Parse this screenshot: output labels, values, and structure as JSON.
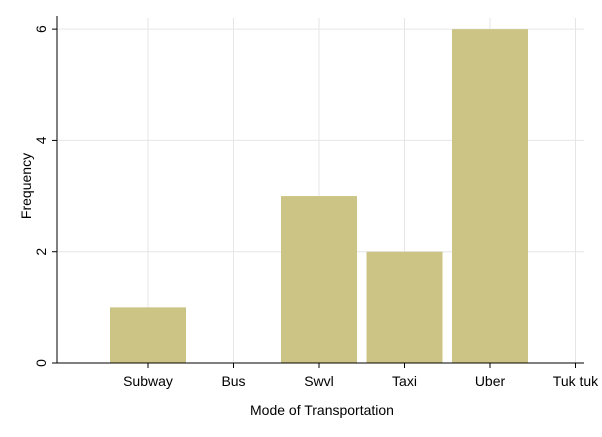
{
  "chart_data": {
    "type": "bar",
    "categories": [
      "Subway",
      "Bus",
      "Swvl",
      "Taxi",
      "Uber",
      "Tuk tuk"
    ],
    "values": [
      1,
      0,
      3,
      2,
      6,
      0
    ],
    "xlabel": "Mode of Transportation",
    "ylabel": "Frequency",
    "ylim": [
      0,
      6.2
    ],
    "yticks": [
      0,
      2,
      4,
      6
    ],
    "grid": true,
    "colors": {
      "bar": "#CCC485",
      "grid": "#E6E6E6",
      "axis": "#000000",
      "background": "#FFFFFF"
    }
  }
}
